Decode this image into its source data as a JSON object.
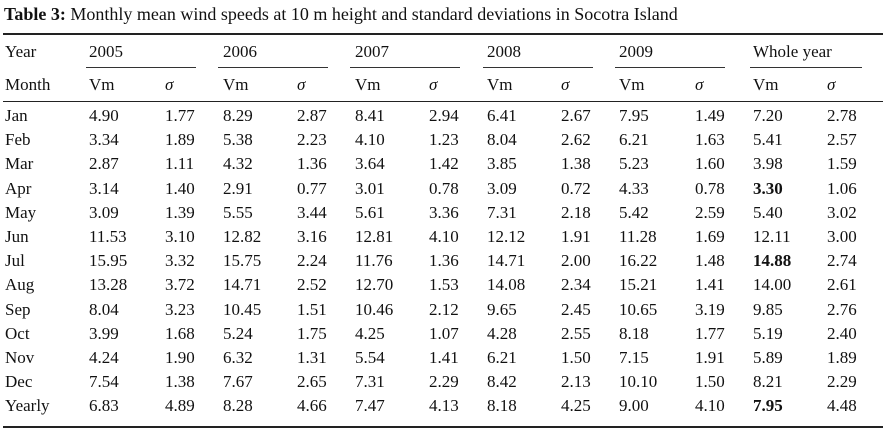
{
  "caption": {
    "label": "Table 3:",
    "text": "Monthly mean wind speeds at 10 m height and standard deviations in Socotra Island"
  },
  "header": {
    "year_label": "Year",
    "month_label": "Month",
    "years": [
      "2005",
      "2006",
      "2007",
      "2008",
      "2009",
      "Whole year"
    ],
    "vm_label": "Vm",
    "sigma_label": "σ"
  },
  "rows": [
    {
      "month": "Jan",
      "values": [
        "4.90",
        "1.77",
        "8.29",
        "2.87",
        "8.41",
        "2.94",
        "6.41",
        "2.67",
        "7.95",
        "1.49",
        "7.20",
        "2.78"
      ]
    },
    {
      "month": "Feb",
      "values": [
        "3.34",
        "1.89",
        "5.38",
        "2.23",
        "4.10",
        "1.23",
        "8.04",
        "2.62",
        "6.21",
        "1.63",
        "5.41",
        "2.57"
      ]
    },
    {
      "month": "Mar",
      "values": [
        "2.87",
        "1.11",
        "4.32",
        "1.36",
        "3.64",
        "1.42",
        "3.85",
        "1.38",
        "5.23",
        "1.60",
        "3.98",
        "1.59"
      ]
    },
    {
      "month": "Apr",
      "values": [
        "3.14",
        "1.40",
        "2.91",
        "0.77",
        "3.01",
        "0.78",
        "3.09",
        "0.72",
        "4.33",
        "0.78",
        "3.30",
        "1.06"
      ]
    },
    {
      "month": "May",
      "values": [
        "3.09",
        "1.39",
        "5.55",
        "3.44",
        "5.61",
        "3.36",
        "7.31",
        "2.18",
        "5.42",
        "2.59",
        "5.40",
        "3.02"
      ]
    },
    {
      "month": "Jun",
      "values": [
        "11.53",
        "3.10",
        "12.82",
        "3.16",
        "12.81",
        "4.10",
        "12.12",
        "1.91",
        "11.28",
        "1.69",
        "12.11",
        "3.00"
      ]
    },
    {
      "month": "Jul",
      "values": [
        "15.95",
        "3.32",
        "15.75",
        "2.24",
        "11.76",
        "1.36",
        "14.71",
        "2.00",
        "16.22",
        "1.48",
        "14.88",
        "2.74"
      ]
    },
    {
      "month": "Aug",
      "values": [
        "13.28",
        "3.72",
        "14.71",
        "2.52",
        "12.70",
        "1.53",
        "14.08",
        "2.34",
        "15.21",
        "1.41",
        "14.00",
        "2.61"
      ]
    },
    {
      "month": "Sep",
      "values": [
        "8.04",
        "3.23",
        "10.45",
        "1.51",
        "10.46",
        "2.12",
        "9.65",
        "2.45",
        "10.65",
        "3.19",
        "9.85",
        "2.76"
      ]
    },
    {
      "month": "Oct",
      "values": [
        "3.99",
        "1.68",
        "5.24",
        "1.75",
        "4.25",
        "1.07",
        "4.28",
        "2.55",
        "8.18",
        "1.77",
        "5.19",
        "2.40"
      ]
    },
    {
      "month": "Nov",
      "values": [
        "4.24",
        "1.90",
        "6.32",
        "1.31",
        "5.54",
        "1.41",
        "6.21",
        "1.50",
        "7.15",
        "1.91",
        "5.89",
        "1.89"
      ]
    },
    {
      "month": "Dec",
      "values": [
        "7.54",
        "1.38",
        "7.67",
        "2.65",
        "7.31",
        "2.29",
        "8.42",
        "2.13",
        "10.10",
        "1.50",
        "8.21",
        "2.29"
      ]
    },
    {
      "month": "Yearly",
      "values": [
        "6.83",
        "4.89",
        "8.28",
        "4.66",
        "7.47",
        "4.13",
        "8.18",
        "4.25",
        "9.00",
        "4.10",
        "7.95",
        "4.48"
      ]
    }
  ],
  "bold_cells": [
    [
      3,
      10
    ],
    [
      6,
      10
    ],
    [
      12,
      10
    ]
  ]
}
